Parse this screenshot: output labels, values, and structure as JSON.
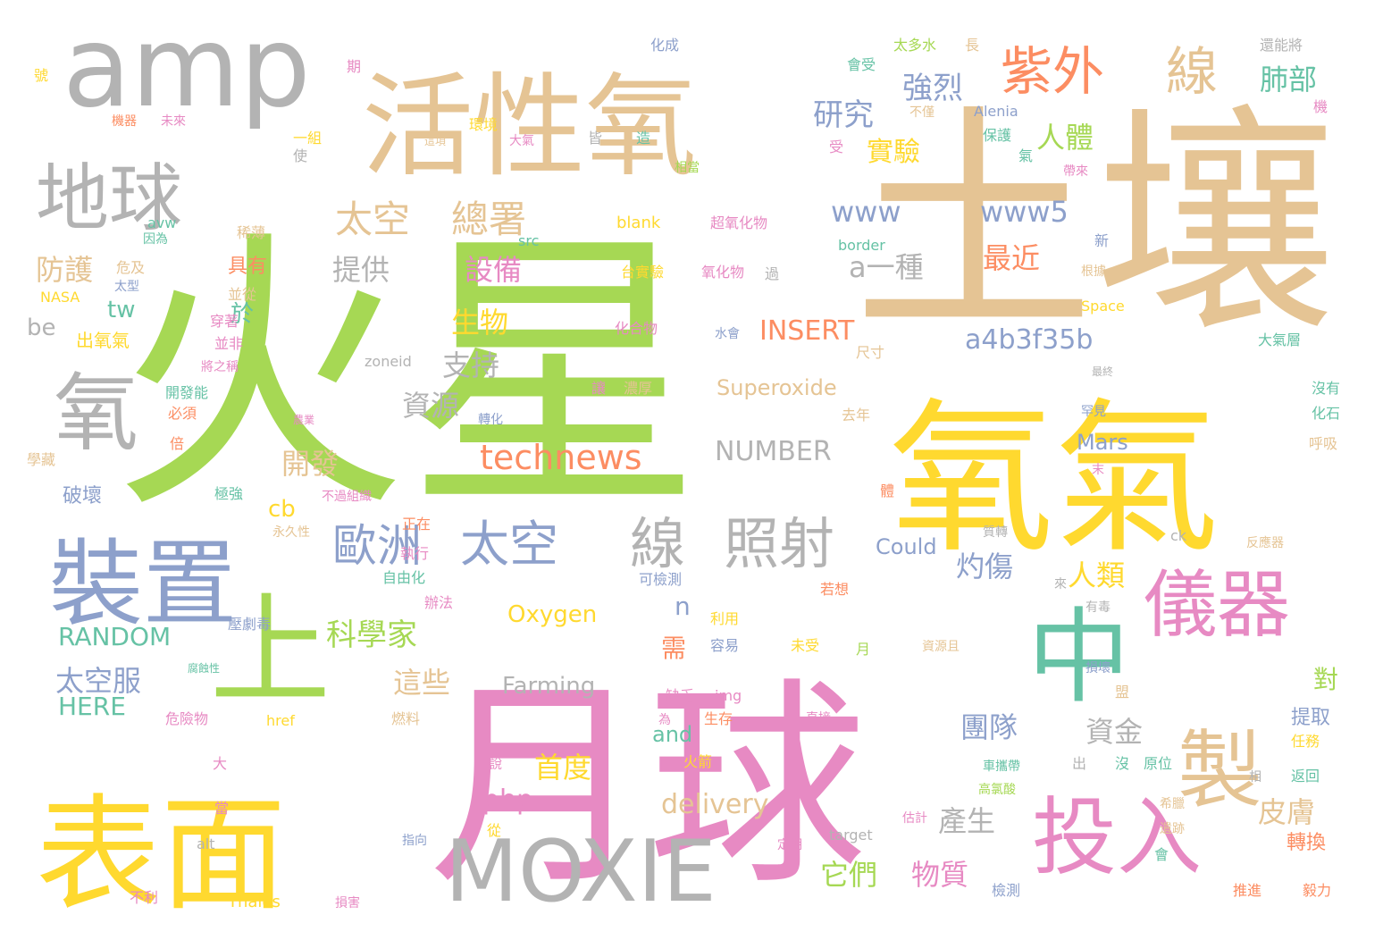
{
  "palette": {
    "green": "#a6d854",
    "tan": "#e5c494",
    "gold": "#ffd92f",
    "pink": "#e78ac3",
    "gray": "#b3b3b3",
    "blue": "#8da0cb",
    "teal": "#66c2a5",
    "orange": "#fc8d62"
  },
  "words": [
    {
      "text": "火星",
      "color": "green",
      "weight": 10
    },
    {
      "text": "土壤",
      "color": "tan",
      "weight": 9
    },
    {
      "text": "月球",
      "color": "pink",
      "weight": 9
    },
    {
      "text": "氧氣",
      "color": "gold",
      "weight": 8
    },
    {
      "text": "表面",
      "color": "gold",
      "weight": 7
    },
    {
      "text": "活性氧",
      "color": "tan",
      "weight": 7
    },
    {
      "text": "amp",
      "color": "gray",
      "weight": 7
    },
    {
      "text": "上",
      "color": "green",
      "weight": 6
    },
    {
      "text": "中",
      "color": "teal",
      "weight": 6
    },
    {
      "text": "裝置",
      "color": "blue",
      "weight": 6
    },
    {
      "text": "製",
      "color": "tan",
      "weight": 6
    },
    {
      "text": "投入",
      "color": "pink",
      "weight": 6
    },
    {
      "text": "MOXIE",
      "color": "gray",
      "weight": 6
    },
    {
      "text": "地球",
      "color": "gray",
      "weight": 6
    },
    {
      "text": "氧",
      "color": "gray",
      "weight": 6
    },
    {
      "text": "儀器",
      "color": "pink",
      "weight": 5
    },
    {
      "text": "紫外",
      "color": "orange",
      "weight": 4
    },
    {
      "text": "線",
      "color": "tan",
      "weight": 4
    },
    {
      "text": "線",
      "color": "gray",
      "weight": 4
    },
    {
      "text": "照射",
      "color": "gray",
      "weight": 4
    },
    {
      "text": "太空",
      "color": "blue",
      "weight": 4
    },
    {
      "text": "歐洲",
      "color": "blue",
      "weight": 4
    },
    {
      "text": "technews",
      "color": "orange",
      "weight": 4
    },
    {
      "text": "太空",
      "color": "tan",
      "weight": 3
    },
    {
      "text": "總署",
      "color": "tan",
      "weight": 3
    },
    {
      "text": "www",
      "color": "blue",
      "weight": 3
    },
    {
      "text": "www5",
      "color": "blue",
      "weight": 3
    },
    {
      "text": "研究",
      "color": "blue",
      "weight": 3
    },
    {
      "text": "強烈",
      "color": "blue",
      "weight": 3
    },
    {
      "text": "肺部",
      "color": "teal",
      "weight": 3
    },
    {
      "text": "人體",
      "color": "green",
      "weight": 3
    },
    {
      "text": "實驗",
      "color": "gold",
      "weight": 3
    },
    {
      "text": "a一種",
      "color": "gray",
      "weight": 3
    },
    {
      "text": "最近",
      "color": "orange",
      "weight": 3
    },
    {
      "text": "提供",
      "color": "gray",
      "weight": 3
    },
    {
      "text": "設備",
      "color": "pink",
      "weight": 3
    },
    {
      "text": "防護",
      "color": "tan",
      "weight": 3
    },
    {
      "text": "生物",
      "color": "gold",
      "weight": 3
    },
    {
      "text": "支持",
      "color": "gray",
      "weight": 3
    },
    {
      "text": "資源",
      "color": "gray",
      "weight": 3
    },
    {
      "text": "a4b3f35b",
      "color": "blue",
      "weight": 3
    },
    {
      "text": "INSERT",
      "color": "orange",
      "weight": 3
    },
    {
      "text": "NUMBER",
      "color": "gray",
      "weight": 3
    },
    {
      "text": "開發",
      "color": "tan",
      "weight": 3
    },
    {
      "text": "灼傷",
      "color": "blue",
      "weight": 3
    },
    {
      "text": "人類",
      "color": "gold",
      "weight": 3
    },
    {
      "text": "科學家",
      "color": "green",
      "weight": 3
    },
    {
      "text": "RANDOM",
      "color": "teal",
      "weight": 3
    },
    {
      "text": "太空服",
      "color": "blue",
      "weight": 3
    },
    {
      "text": "HERE",
      "color": "teal",
      "weight": 3
    },
    {
      "text": "這些",
      "color": "tan",
      "weight": 3
    },
    {
      "text": "資金",
      "color": "gray",
      "weight": 3
    },
    {
      "text": "團隊",
      "color": "blue",
      "weight": 3
    },
    {
      "text": "首度",
      "color": "gold",
      "weight": 3
    },
    {
      "text": "皮膚",
      "color": "tan",
      "weight": 3
    },
    {
      "text": "產生",
      "color": "gray",
      "weight": 3
    },
    {
      "text": "delivery",
      "color": "tan",
      "weight": 3
    },
    {
      "text": "php",
      "color": "pink",
      "weight": 3
    },
    {
      "text": "它們",
      "color": "green",
      "weight": 3
    },
    {
      "text": "物質",
      "color": "pink",
      "weight": 3
    },
    {
      "text": "Superoxide",
      "color": "tan",
      "weight": 2
    },
    {
      "text": "Oxygen",
      "color": "gold",
      "weight": 2
    },
    {
      "text": "Farming",
      "color": "gray",
      "weight": 2
    },
    {
      "text": "Could",
      "color": "blue",
      "weight": 2
    },
    {
      "text": "Mars",
      "color": "blue",
      "weight": 2
    },
    {
      "text": "tw",
      "color": "teal",
      "weight": 2
    },
    {
      "text": "於",
      "color": "teal",
      "weight": 2
    },
    {
      "text": "cb",
      "color": "gold",
      "weight": 2
    },
    {
      "text": "n",
      "color": "blue",
      "weight": 2
    },
    {
      "text": "需",
      "color": "orange",
      "weight": 2
    },
    {
      "text": "對",
      "color": "green",
      "weight": 2
    },
    {
      "text": "and",
      "color": "teal",
      "weight": 2
    },
    {
      "text": "提取",
      "color": "blue",
      "weight": 2
    },
    {
      "text": "轉換",
      "color": "orange",
      "weight": 2
    },
    {
      "text": "破壞",
      "color": "blue",
      "weight": 2
    },
    {
      "text": "具有",
      "color": "orange",
      "weight": 2
    },
    {
      "text": "出氧氣",
      "color": "gold",
      "weight": 2
    },
    {
      "text": "blank",
      "color": "gold",
      "weight": 1
    },
    {
      "text": "超氧化物",
      "color": "pink",
      "weight": 1
    },
    {
      "text": "台實驗",
      "color": "gold",
      "weight": 1
    },
    {
      "text": "氧化物",
      "color": "pink",
      "weight": 1
    },
    {
      "text": "化合物",
      "color": "pink",
      "weight": 1
    },
    {
      "text": "水會",
      "color": "blue",
      "weight": 1
    },
    {
      "text": "zoneid",
      "color": "gray",
      "weight": 1
    },
    {
      "text": "轉化",
      "color": "blue",
      "weight": 1
    },
    {
      "text": "border",
      "color": "teal",
      "weight": 1
    },
    {
      "text": "Space",
      "color": "gold",
      "weight": 1
    },
    {
      "text": "大氣層",
      "color": "teal",
      "weight": 1
    },
    {
      "text": "Alenia",
      "color": "blue",
      "weight": 1
    },
    {
      "text": "Thales",
      "color": "gold",
      "weight": 1
    },
    {
      "text": "target",
      "color": "gray",
      "weight": 1
    },
    {
      "text": "NASA",
      "color": "gold",
      "weight": 1
    },
    {
      "text": "be",
      "color": "gray",
      "weight": 1
    },
    {
      "text": "avw",
      "color": "teal",
      "weight": 1
    },
    {
      "text": "src",
      "color": "teal",
      "weight": 1
    },
    {
      "text": "ck",
      "color": "gray",
      "weight": 1
    },
    {
      "text": "img",
      "color": "pink",
      "weight": 1
    },
    {
      "text": "href",
      "color": "gold",
      "weight": 1
    },
    {
      "text": "alt",
      "color": "gray",
      "weight": 1
    },
    {
      "text": "化成",
      "color": "blue",
      "weight": 1
    },
    {
      "text": "太多水",
      "color": "green",
      "weight": 1
    },
    {
      "text": "長",
      "color": "tan",
      "weight": 1
    },
    {
      "text": "還能將",
      "color": "gray",
      "weight": 1
    },
    {
      "text": "會受",
      "color": "teal",
      "weight": 1
    },
    {
      "text": "期",
      "color": "pink",
      "weight": 1
    },
    {
      "text": "號",
      "color": "gold",
      "weight": 1
    },
    {
      "text": "機",
      "color": "pink",
      "weight": 1
    },
    {
      "text": "環境",
      "color": "gold",
      "weight": 1
    },
    {
      "text": "不僅",
      "color": "tan",
      "weight": 1
    },
    {
      "text": "保護",
      "color": "teal",
      "weight": 1
    },
    {
      "text": "一組",
      "color": "gold",
      "weight": 1
    },
    {
      "text": "未來",
      "color": "pink",
      "weight": 1
    },
    {
      "text": "機器",
      "color": "orange",
      "weight": 1
    },
    {
      "text": "這項",
      "color": "tan",
      "weight": 1
    },
    {
      "text": "大氣",
      "color": "pink",
      "weight": 1
    },
    {
      "text": "皆",
      "color": "gray",
      "weight": 1
    },
    {
      "text": "造",
      "color": "teal",
      "weight": 1
    },
    {
      "text": "受",
      "color": "pink",
      "weight": 1
    },
    {
      "text": "氣",
      "color": "teal",
      "weight": 1
    },
    {
      "text": "帶來",
      "color": "pink",
      "weight": 1
    },
    {
      "text": "相當",
      "color": "green",
      "weight": 1
    },
    {
      "text": "使",
      "color": "gray",
      "weight": 1
    },
    {
      "text": "稀薄",
      "color": "tan",
      "weight": 1
    },
    {
      "text": "因為",
      "color": "teal",
      "weight": 1
    },
    {
      "text": "危及",
      "color": "tan",
      "weight": 1
    },
    {
      "text": "太型",
      "color": "blue",
      "weight": 1
    },
    {
      "text": "並從",
      "color": "tan",
      "weight": 1
    },
    {
      "text": "穿著",
      "color": "pink",
      "weight": 1
    },
    {
      "text": "並非",
      "color": "pink",
      "weight": 1
    },
    {
      "text": "將之稱",
      "color": "pink",
      "weight": 1
    },
    {
      "text": "開發能",
      "color": "teal",
      "weight": 1
    },
    {
      "text": "必須",
      "color": "orange",
      "weight": 1
    },
    {
      "text": "倍",
      "color": "orange",
      "weight": 1
    },
    {
      "text": "學藏",
      "color": "tan",
      "weight": 1
    },
    {
      "text": "農業",
      "color": "pink",
      "weight": 1
    },
    {
      "text": "極強",
      "color": "teal",
      "weight": 1
    },
    {
      "text": "不過組織",
      "color": "pink",
      "weight": 1
    },
    {
      "text": "永久性",
      "color": "tan",
      "weight": 1
    },
    {
      "text": "正在",
      "color": "orange",
      "weight": 1
    },
    {
      "text": "執行",
      "color": "pink",
      "weight": 1
    },
    {
      "text": "自由化",
      "color": "teal",
      "weight": 1
    },
    {
      "text": "辦法",
      "color": "pink",
      "weight": 1
    },
    {
      "text": "可檢測",
      "color": "blue",
      "weight": 1
    },
    {
      "text": "若想",
      "color": "orange",
      "weight": 1
    },
    {
      "text": "利用",
      "color": "gold",
      "weight": 1
    },
    {
      "text": "容易",
      "color": "blue",
      "weight": 1
    },
    {
      "text": "未受",
      "color": "gold",
      "weight": 1
    },
    {
      "text": "月",
      "color": "green",
      "weight": 1
    },
    {
      "text": "資源且",
      "color": "tan",
      "weight": 1
    },
    {
      "text": "有毒",
      "color": "gray",
      "weight": 1
    },
    {
      "text": "來",
      "color": "gray",
      "weight": 1
    },
    {
      "text": "壓劇毒",
      "color": "blue",
      "weight": 1
    },
    {
      "text": "腐蝕性",
      "color": "teal",
      "weight": 1
    },
    {
      "text": "危險物",
      "color": "pink",
      "weight": 1
    },
    {
      "text": "缺乏",
      "color": "pink",
      "weight": 1
    },
    {
      "text": "燃料",
      "color": "tan",
      "weight": 1
    },
    {
      "text": "為",
      "color": "pink",
      "weight": 1
    },
    {
      "text": "生存",
      "color": "orange",
      "weight": 1
    },
    {
      "text": "直接",
      "color": "pink",
      "weight": 1
    },
    {
      "text": "損壞",
      "color": "blue",
      "weight": 1
    },
    {
      "text": "盟",
      "color": "tan",
      "weight": 1
    },
    {
      "text": "火箭",
      "color": "gold",
      "weight": 1
    },
    {
      "text": "說",
      "color": "pink",
      "weight": 1
    },
    {
      "text": "出",
      "color": "gray",
      "weight": 1
    },
    {
      "text": "沒",
      "color": "teal",
      "weight": 1
    },
    {
      "text": "車攜帶",
      "color": "teal",
      "weight": 1
    },
    {
      "text": "原位",
      "color": "teal",
      "weight": 1
    },
    {
      "text": "相",
      "color": "gray",
      "weight": 1
    },
    {
      "text": "高氯酸",
      "color": "green",
      "weight": 1
    },
    {
      "text": "估計",
      "color": "pink",
      "weight": 1
    },
    {
      "text": "希臘",
      "color": "tan",
      "weight": 1
    },
    {
      "text": "遺跡",
      "color": "tan",
      "weight": 1
    },
    {
      "text": "返回",
      "color": "teal",
      "weight": 1
    },
    {
      "text": "任務",
      "color": "gold",
      "weight": 1
    },
    {
      "text": "從",
      "color": "gold",
      "weight": 1
    },
    {
      "text": "指向",
      "color": "blue",
      "weight": 1
    },
    {
      "text": "定期",
      "color": "pink",
      "weight": 1
    },
    {
      "text": "會",
      "color": "teal",
      "weight": 1
    },
    {
      "text": "檢測",
      "color": "blue",
      "weight": 1
    },
    {
      "text": "推進",
      "color": "orange",
      "weight": 1
    },
    {
      "text": "毅力",
      "color": "orange",
      "weight": 1
    },
    {
      "text": "不利",
      "color": "pink",
      "weight": 1
    },
    {
      "text": "損害",
      "color": "pink",
      "weight": 1
    },
    {
      "text": "質轉",
      "color": "gray",
      "weight": 1
    },
    {
      "text": "反應器",
      "color": "tan",
      "weight": 1
    },
    {
      "text": "沒有",
      "color": "teal",
      "weight": 1
    },
    {
      "text": "化石",
      "color": "teal",
      "weight": 1
    },
    {
      "text": "呼吸",
      "color": "tan",
      "weight": 1
    },
    {
      "text": "罕見",
      "color": "blue",
      "weight": 1
    },
    {
      "text": "最終",
      "color": "gray",
      "weight": 1
    },
    {
      "text": "去年",
      "color": "tan",
      "weight": 1
    },
    {
      "text": "濃厚",
      "color": "tan",
      "weight": 1
    },
    {
      "text": "尺寸",
      "color": "tan",
      "weight": 1
    },
    {
      "text": "新",
      "color": "blue",
      "weight": 1
    },
    {
      "text": "根據",
      "color": "tan",
      "weight": 1
    },
    {
      "text": "過",
      "color": "gray",
      "weight": 1
    },
    {
      "text": "末",
      "color": "pink",
      "weight": 1
    },
    {
      "text": "讓",
      "color": "pink",
      "weight": 1
    },
    {
      "text": "體",
      "color": "orange",
      "weight": 1
    },
    {
      "text": "大",
      "color": "pink",
      "weight": 1
    },
    {
      "text": "當",
      "color": "pink",
      "weight": 1
    }
  ]
}
